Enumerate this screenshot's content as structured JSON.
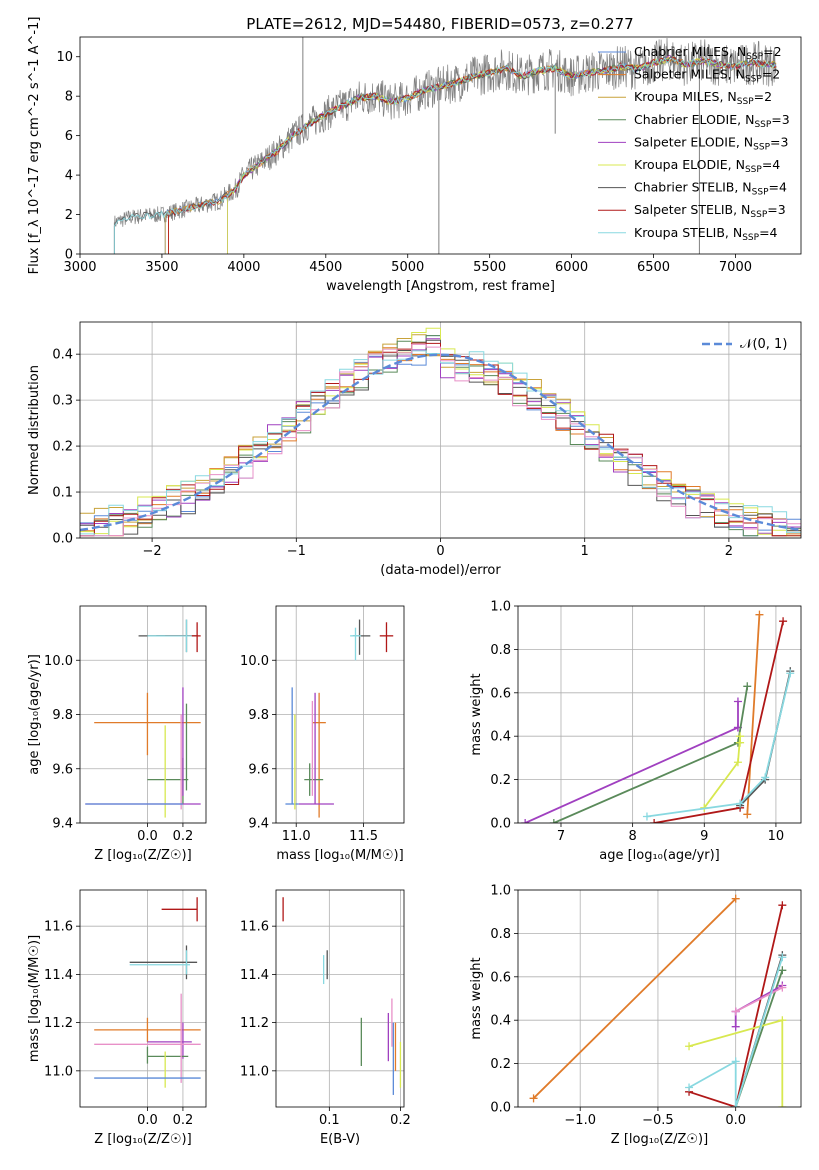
{
  "figure": {
    "title": "PLATE=2612, MJD=54480, FIBERID=0573, z=0.277"
  },
  "colors": {
    "Chabrier MILES": "#5b8ad8",
    "Salpeter MILES": "#e07b2a",
    "Kroupa MILES": "#c8a23a",
    "Chabrier ELODIE": "#5a8a5a",
    "Salpeter ELODIE": "#a040c0",
    "Kroupa ELODIE": "#d8e850",
    "Chabrier STELIB": "#555555",
    "Salpeter STELIB": "#b01818",
    "Kroupa STELIB": "#88d8e0",
    "pink": "#e890c8",
    "normal": "#5b8ad8",
    "data": "#808080"
  },
  "chart_data": [
    {
      "id": "spectrum",
      "type": "line",
      "xlabel": "wavelength [Angstrom, rest frame]",
      "ylabel": "Flux [f_λ 10^-17 erg cm^-2 s^-1 A^-1]",
      "xlim": [
        3000,
        7400
      ],
      "ylim": [
        0,
        11
      ],
      "xticks": [
        3000,
        3500,
        4000,
        4500,
        5000,
        5500,
        6000,
        6500,
        7000
      ],
      "yticks": [
        0,
        2,
        4,
        6,
        8,
        10
      ],
      "legend_position": "top-right",
      "legend": [
        {
          "label": "Chabrier MILES, N",
          "sub": "SSP",
          "suffix": "=2",
          "color": "#5b8ad8"
        },
        {
          "label": "Salpeter MILES, N",
          "sub": "SSP",
          "suffix": "=2",
          "color": "#e07b2a"
        },
        {
          "label": "Kroupa MILES, N",
          "sub": "SSP",
          "suffix": "=2",
          "color": "#c8a23a"
        },
        {
          "label": "Chabrier ELODIE, N",
          "sub": "SSP",
          "suffix": "=3",
          "color": "#5a8a5a"
        },
        {
          "label": "Salpeter ELODIE, N",
          "sub": "SSP",
          "suffix": "=3",
          "color": "#a040c0"
        },
        {
          "label": "Kroupa ELODIE, N",
          "sub": "SSP",
          "suffix": "=4",
          "color": "#d8e850"
        },
        {
          "label": "Chabrier STELIB, N",
          "sub": "SSP",
          "suffix": "=4",
          "color": "#555555"
        },
        {
          "label": "Salpeter STELIB, N",
          "sub": "SSP",
          "suffix": "=3",
          "color": "#b01818"
        },
        {
          "label": "Kroupa STELIB, N",
          "sub": "SSP",
          "suffix": "=4",
          "color": "#88d8e0"
        }
      ],
      "model_start": [
        {
          "color": "#5b8ad8",
          "x0": 3520
        },
        {
          "color": "#e07b2a",
          "x0": 3540
        },
        {
          "color": "#c8a23a",
          "x0": 3520
        },
        {
          "color": "#5a8a5a",
          "x0": 3900
        },
        {
          "color": "#a040c0",
          "x0": 3900
        },
        {
          "color": "#d8e850",
          "x0": 3900
        },
        {
          "color": "#555555",
          "x0": 3210
        },
        {
          "color": "#b01818",
          "x0": 3540
        },
        {
          "color": "#88d8e0",
          "x0": 3210
        }
      ],
      "continuum": {
        "x": [
          3210,
          3300,
          3400,
          3500,
          3550,
          3650,
          3750,
          3850,
          3950,
          4000,
          4100,
          4200,
          4300,
          4400,
          4500,
          4600,
          4700,
          4800,
          4900,
          5000,
          5100,
          5200,
          5300,
          5400,
          5500,
          5600,
          5700,
          5800,
          5900,
          6000,
          6100,
          6200,
          6300,
          6400,
          6500,
          6600,
          6700,
          6800,
          6900,
          7000,
          7100,
          7200
        ],
        "y": [
          1.6,
          1.85,
          1.95,
          2.0,
          2.1,
          2.3,
          2.5,
          2.7,
          3.3,
          4.0,
          4.6,
          5.2,
          6.0,
          6.6,
          7.1,
          7.5,
          7.9,
          8.0,
          7.7,
          7.9,
          8.3,
          8.5,
          8.7,
          9.0,
          9.2,
          9.4,
          9.0,
          9.3,
          9.4,
          9.0,
          9.2,
          9.3,
          9.5,
          9.4,
          9.7,
          9.9,
          9.6,
          9.8,
          9.6,
          9.5,
          9.7,
          9.6
        ]
      },
      "spikes": [
        {
          "x": 4360,
          "y": 11.0
        },
        {
          "x": 5190,
          "y": 0.0
        },
        {
          "x": 5900,
          "y": 6.1
        },
        {
          "x": 6780,
          "y": 0.0
        }
      ]
    },
    {
      "id": "residuals",
      "type": "area",
      "xlabel": "(data-model)/error",
      "ylabel": "Normed distribution",
      "xlim": [
        -2.5,
        2.5
      ],
      "ylim": [
        0,
        0.47
      ],
      "xticks": [
        -2,
        -1,
        0,
        1,
        2
      ],
      "yticks": [
        0.0,
        0.1,
        0.2,
        0.3,
        0.4
      ],
      "bin_width": 0.1,
      "legend_position": "top-right",
      "legend": [
        {
          "label": "𝒩(0, 1)",
          "color": "#5b8ad8",
          "style": "dashed"
        }
      ],
      "series_colors": [
        "#5b8ad8",
        "#e07b2a",
        "#c8a23a",
        "#5a8a5a",
        "#a040c0",
        "#d8e850",
        "#555555",
        "#b01818",
        "#88d8e0",
        "#e890c8"
      ],
      "noise": [
        0.02,
        -0.015,
        0.01,
        0.025,
        -0.02,
        0.015,
        -0.01,
        0.03,
        -0.025,
        0.005,
        0.02,
        -0.03,
        0.01,
        -0.005,
        0.025,
        -0.015,
        0.02,
        -0.02,
        0.03,
        -0.01,
        0.015,
        0.005,
        -0.025,
        0.02,
        -0.015,
        0.01,
        0.025,
        -0.03,
        0.015,
        -0.005,
        0.02,
        -0.02,
        0.01,
        0.03,
        -0.015,
        0.005,
        -0.025,
        0.02,
        0.01,
        -0.01,
        0.025,
        -0.02,
        0.015,
        0.03,
        -0.03,
        0.005,
        0.02,
        -0.015,
        0.01,
        -0.025
      ]
    },
    {
      "id": "age-vs-Z",
      "type": "scatter",
      "xlabel": "Z [log₁₀(Z/Z☉)]",
      "ylabel": "age  [log₁₀(age/yr)]",
      "xlim": [
        -0.38,
        0.33
      ],
      "ylim": [
        9.4,
        10.2
      ],
      "xticks": [
        0.0,
        0.2
      ],
      "yticks": [
        9.4,
        9.6,
        9.8,
        10.0
      ],
      "points": [
        {
          "x": 0.0,
          "y": 10.09,
          "xl": -0.05,
          "xh": 0.24,
          "yl": 10.09,
          "yh": 10.09,
          "color": "#555555"
        },
        {
          "x": 0.22,
          "y": 10.09,
          "xl": 0.05,
          "xh": 0.28,
          "yl": 10.03,
          "yh": 10.15,
          "color": "#555555"
        },
        {
          "x": 0.28,
          "y": 10.09,
          "xl": 0.1,
          "xh": 0.3,
          "yl": 10.03,
          "yh": 10.14,
          "color": "#b01818"
        },
        {
          "x": 0.22,
          "y": 10.09,
          "xl": 0.0,
          "xh": 0.25,
          "yl": 10.03,
          "yh": 10.15,
          "color": "#88d8e0"
        },
        {
          "x": 0.0,
          "y": 9.77,
          "xl": -0.3,
          "xh": 0.3,
          "yl": 9.65,
          "yh": 9.88,
          "color": "#e07b2a"
        },
        {
          "x": 0.2,
          "y": 9.56,
          "xl": 0.0,
          "xh": 0.23,
          "yl": 9.47,
          "yh": 9.64,
          "color": "#5a8a5a"
        },
        {
          "x": 0.22,
          "y": 9.7,
          "xl": 0.22,
          "xh": 0.22,
          "yl": 9.52,
          "yh": 9.84,
          "color": "#5a8a5a"
        },
        {
          "x": 0.1,
          "y": 9.6,
          "xl": 0.1,
          "xh": 0.1,
          "yl": 9.42,
          "yh": 9.76,
          "color": "#d8e850"
        },
        {
          "x": 0.2,
          "y": 9.7,
          "xl": 0.2,
          "xh": 0.2,
          "yl": 9.5,
          "yh": 9.9,
          "color": "#a040c0"
        },
        {
          "x": 0.19,
          "y": 9.6,
          "xl": 0.19,
          "xh": 0.19,
          "yl": 9.45,
          "yh": 9.8,
          "color": "#e890c8"
        },
        {
          "x": 0.0,
          "y": 9.47,
          "xl": -0.35,
          "xh": 0.3,
          "yl": 9.47,
          "yh": 9.47,
          "color": "#a040c0"
        },
        {
          "x": 0.0,
          "y": 9.47,
          "xl": -0.35,
          "xh": 0.2,
          "yl": 9.47,
          "yh": 9.47,
          "color": "#5b8ad8"
        }
      ]
    },
    {
      "id": "age-vs-mass",
      "type": "scatter",
      "xlabel": "mass [log₁₀(M/M☉)]",
      "ylabel": "",
      "xlim": [
        10.85,
        11.8
      ],
      "ylim": [
        9.4,
        10.2
      ],
      "xticks": [
        11.0,
        11.5
      ],
      "yticks": [
        9.4,
        9.6,
        9.8,
        10.0
      ],
      "points": [
        {
          "x": 11.47,
          "y": 10.09,
          "xl": 11.42,
          "xh": 11.55,
          "yl": 10.02,
          "yh": 10.15,
          "color": "#555555"
        },
        {
          "x": 11.44,
          "y": 10.09,
          "xl": 11.4,
          "xh": 11.48,
          "yl": 10.0,
          "yh": 10.12,
          "color": "#88d8e0"
        },
        {
          "x": 11.67,
          "y": 10.09,
          "xl": 11.62,
          "xh": 11.72,
          "yl": 10.03,
          "yh": 10.14,
          "color": "#b01818"
        },
        {
          "x": 11.17,
          "y": 9.77,
          "xl": 11.12,
          "xh": 11.22,
          "yl": 9.42,
          "yh": 9.88,
          "color": "#e07b2a"
        },
        {
          "x": 11.1,
          "y": 9.56,
          "xl": 11.06,
          "xh": 11.2,
          "yl": 9.5,
          "yh": 9.62,
          "color": "#5a8a5a"
        },
        {
          "x": 10.97,
          "y": 9.47,
          "xl": 10.92,
          "xh": 11.02,
          "yl": 9.47,
          "yh": 9.9,
          "color": "#5b8ad8"
        },
        {
          "x": 11.14,
          "y": 9.47,
          "xl": 11.02,
          "xh": 11.28,
          "yl": 9.47,
          "yh": 9.88,
          "color": "#a040c0"
        },
        {
          "x": 11.12,
          "y": 9.65,
          "xl": 11.12,
          "xh": 11.12,
          "yl": 9.5,
          "yh": 9.85,
          "color": "#e890c8"
        },
        {
          "x": 10.99,
          "y": 9.6,
          "xl": 10.99,
          "xh": 10.99,
          "yl": 9.45,
          "yh": 9.8,
          "color": "#d8e850"
        }
      ]
    },
    {
      "id": "massweight-vs-age",
      "type": "line",
      "xlabel": "age  [log₁₀(age/yr)]",
      "ylabel": "mass weight",
      "xlim": [
        6.4,
        10.35
      ],
      "ylim": [
        0,
        1
      ],
      "xticks": [
        7,
        8,
        9,
        10
      ],
      "yticks": [
        0.0,
        0.2,
        0.4,
        0.6,
        0.8,
        1.0
      ],
      "series": [
        {
          "color": "#a040c0",
          "x": [
            6.5,
            9.47,
            9.47,
            9.47
          ],
          "y": [
            0.0,
            0.44,
            0.56,
            0.44
          ]
        },
        {
          "color": "#5a8a5a",
          "x": [
            6.9,
            9.47,
            9.6
          ],
          "y": [
            0.0,
            0.37,
            0.63
          ]
        },
        {
          "color": "#d8e850",
          "x": [
            9.0,
            9.47,
            9.5,
            9.5
          ],
          "y": [
            0.07,
            0.28,
            0.4,
            0.37
          ]
        },
        {
          "color": "#e07b2a",
          "x": [
            9.6,
            9.77
          ],
          "y": [
            0.04,
            0.96
          ]
        },
        {
          "color": "#b01818",
          "x": [
            8.3,
            9.5,
            10.1
          ],
          "y": [
            0.0,
            0.07,
            0.93
          ]
        },
        {
          "color": "#555555",
          "x": [
            9.5,
            9.85,
            10.2
          ],
          "y": [
            0.08,
            0.2,
            0.7
          ]
        },
        {
          "color": "#88d8e0",
          "x": [
            8.2,
            9.5,
            9.85,
            10.2
          ],
          "y": [
            0.03,
            0.09,
            0.21,
            0.69
          ]
        }
      ]
    },
    {
      "id": "mass-vs-Z",
      "type": "scatter",
      "xlabel": "Z [log₁₀(Z/Z☉)]",
      "ylabel": "mass [log₁₀(M/M☉)]",
      "xlim": [
        -0.38,
        0.33
      ],
      "ylim": [
        10.85,
        11.75
      ],
      "xticks": [
        0.0,
        0.2
      ],
      "yticks": [
        11.0,
        11.2,
        11.4,
        11.6
      ],
      "points": [
        {
          "x": 0.28,
          "y": 11.67,
          "xl": 0.08,
          "xh": 0.28,
          "yl": 11.62,
          "yh": 11.72,
          "color": "#b01818"
        },
        {
          "x": 0.22,
          "y": 11.45,
          "xl": -0.1,
          "xh": 0.28,
          "yl": 11.38,
          "yh": 11.52,
          "color": "#555555"
        },
        {
          "x": 0.22,
          "y": 11.44,
          "xl": -0.1,
          "xh": 0.24,
          "yl": 11.4,
          "yh": 11.5,
          "color": "#88d8e0"
        },
        {
          "x": 0.0,
          "y": 11.17,
          "xl": -0.3,
          "xh": 0.3,
          "yl": 11.12,
          "yh": 11.22,
          "color": "#e07b2a"
        },
        {
          "x": 0.2,
          "y": 11.12,
          "xl": 0.0,
          "xh": 0.25,
          "yl": 11.05,
          "yh": 11.2,
          "color": "#a040c0"
        },
        {
          "x": 0.0,
          "y": 11.11,
          "xl": -0.3,
          "xh": 0.3,
          "yl": 11.11,
          "yh": 11.11,
          "color": "#e890c8"
        },
        {
          "x": 0.0,
          "y": 11.06,
          "xl": 0.0,
          "xh": 0.23,
          "yl": 11.03,
          "yh": 11.1,
          "color": "#5a8a5a"
        },
        {
          "x": 0.1,
          "y": 11.0,
          "xl": 0.1,
          "xh": 0.1,
          "yl": 10.93,
          "yh": 11.08,
          "color": "#d8e850"
        },
        {
          "x": 0.19,
          "y": 11.2,
          "xl": 0.19,
          "xh": 0.19,
          "yl": 10.95,
          "yh": 11.32,
          "color": "#e890c8"
        },
        {
          "x": 0.0,
          "y": 10.97,
          "xl": -0.3,
          "xh": 0.3,
          "yl": 10.97,
          "yh": 10.97,
          "color": "#5b8ad8"
        }
      ]
    },
    {
      "id": "mass-vs-EBV",
      "type": "scatter",
      "xlabel": "E(B-V)",
      "ylabel": "",
      "xlim": [
        0.025,
        0.205
      ],
      "ylim": [
        10.85,
        11.75
      ],
      "xticks": [
        0.1,
        0.2
      ],
      "yticks": [
        11.0,
        11.2,
        11.4,
        11.6
      ],
      "points": [
        {
          "x": 0.035,
          "y": 11.67,
          "xl": 0.035,
          "xh": 0.035,
          "yl": 11.62,
          "yh": 11.72,
          "color": "#b01818"
        },
        {
          "x": 0.097,
          "y": 11.44,
          "xl": 0.097,
          "xh": 0.097,
          "yl": 11.38,
          "yh": 11.5,
          "color": "#555555"
        },
        {
          "x": 0.092,
          "y": 11.42,
          "xl": 0.092,
          "xh": 0.092,
          "yl": 11.36,
          "yh": 11.48,
          "color": "#88d8e0"
        },
        {
          "x": 0.145,
          "y": 11.12,
          "xl": 0.145,
          "xh": 0.145,
          "yl": 11.02,
          "yh": 11.22,
          "color": "#5a8a5a"
        },
        {
          "x": 0.183,
          "y": 11.14,
          "xl": 0.183,
          "xh": 0.183,
          "yl": 11.04,
          "yh": 11.24,
          "color": "#a040c0"
        },
        {
          "x": 0.188,
          "y": 11.2,
          "xl": 0.188,
          "xh": 0.188,
          "yl": 11.1,
          "yh": 11.3,
          "color": "#e890c8"
        },
        {
          "x": 0.19,
          "y": 11.05,
          "xl": 0.19,
          "xh": 0.19,
          "yl": 10.9,
          "yh": 11.2,
          "color": "#5b8ad8"
        },
        {
          "x": 0.193,
          "y": 11.1,
          "xl": 0.193,
          "xh": 0.193,
          "yl": 11.0,
          "yh": 11.2,
          "color": "#e07b2a"
        },
        {
          "x": 0.2,
          "y": 11.02,
          "xl": 0.2,
          "xh": 0.2,
          "yl": 10.93,
          "yh": 11.12,
          "color": "#d8e850"
        }
      ]
    },
    {
      "id": "massweight-vs-Z",
      "type": "line",
      "xlabel": "Z [log₁₀(Z/Z☉)]",
      "ylabel": "mass weight",
      "xlim": [
        -1.4,
        0.42
      ],
      "ylim": [
        0,
        1
      ],
      "xticks": [
        -1.0,
        -0.5,
        0.0
      ],
      "yticks": [
        0.0,
        0.2,
        0.4,
        0.6,
        0.8,
        1.0
      ],
      "series": [
        {
          "color": "#e07b2a",
          "x": [
            -1.3,
            0.0
          ],
          "y": [
            0.04,
            0.96
          ]
        },
        {
          "color": "#b01818",
          "x": [
            -0.3,
            0.0,
            0.3
          ],
          "y": [
            0.07,
            0.0,
            0.93
          ]
        },
        {
          "color": "#555555",
          "x": [
            0.0,
            0.3
          ],
          "y": [
            0.0,
            0.7
          ]
        },
        {
          "color": "#5a8a5a",
          "x": [
            0.0,
            0.3
          ],
          "y": [
            0.0,
            0.63
          ]
        },
        {
          "color": "#a040c0",
          "x": [
            0.0,
            0.0,
            0.3,
            0.0
          ],
          "y": [
            0.37,
            0.44,
            0.56,
            0.44
          ]
        },
        {
          "color": "#d8e850",
          "x": [
            -0.3,
            0.3,
            0.3
          ],
          "y": [
            0.28,
            0.4,
            0.0
          ]
        },
        {
          "color": "#e890c8",
          "x": [
            0.0,
            0.3
          ],
          "y": [
            0.44,
            0.55
          ]
        },
        {
          "color": "#88d8e0",
          "x": [
            -0.3,
            0.0,
            0.0,
            0.3
          ],
          "y": [
            0.09,
            0.21,
            0.0,
            0.69
          ]
        }
      ]
    }
  ]
}
